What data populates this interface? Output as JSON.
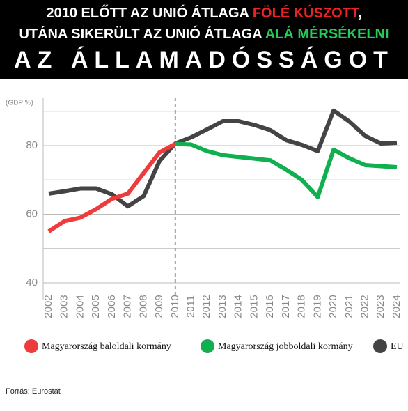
{
  "chart_data": {
    "type": "line",
    "title_lines": [
      [
        {
          "text": "2010 ELŐTT AZ UNIÓ ÁTLAGA ",
          "color": "#ffffff"
        },
        {
          "text": "FÖLÉ KÚSZOTT",
          "color": "#ee2222"
        },
        {
          "text": ",",
          "color": "#ffffff"
        }
      ],
      [
        {
          "text": "UTÁNA SIKERÜLT AZ UNIÓ ÁTLAGA ",
          "color": "#ffffff"
        },
        {
          "text": "ALÁ MÉRSÉKELNI",
          "color": "#22cc55"
        }
      ],
      [
        {
          "text": "AZ ÁLLAMADÓSSÁGOT",
          "color": "#ffffff"
        }
      ]
    ],
    "y_axis_label": "(GDP %)",
    "categories": [
      "2002",
      "2003",
      "2004",
      "2005",
      "2006",
      "2007",
      "2008",
      "2009",
      "2010",
      "2011",
      "2012",
      "2013",
      "2014",
      "2015",
      "2016",
      "2017",
      "2018",
      "2019",
      "2020",
      "2021",
      "2022",
      "2023",
      "2024"
    ],
    "series": [
      {
        "name": "Magyarország baloldali kormány",
        "color": "#ee3b3b",
        "values": [
          55,
          58,
          59,
          61.5,
          64.5,
          66,
          72,
          78,
          80.5,
          null,
          null,
          null,
          null,
          null,
          null,
          null,
          null,
          null,
          null,
          null,
          null,
          null,
          null
        ]
      },
      {
        "name": "Magyarország jobboldali kormány",
        "color": "#10b050",
        "values": [
          null,
          null,
          null,
          null,
          null,
          null,
          null,
          null,
          80.5,
          80.3,
          78.4,
          77.2,
          76.7,
          76.2,
          75.7,
          73,
          70,
          65,
          78.8,
          76.3,
          74.3,
          74,
          73.7
        ]
      },
      {
        "name": "EU",
        "color": "#444444",
        "values": [
          66,
          66.7,
          67.5,
          67.5,
          65.8,
          62.3,
          65.3,
          75.5,
          80.6,
          82.4,
          84.7,
          87.1,
          87.1,
          86,
          84.5,
          81.6,
          80.2,
          78.4,
          90.2,
          87,
          82.8,
          80.6,
          80.8
        ]
      }
    ],
    "vline": "2010",
    "ylim": [
      40,
      94
    ],
    "yticks": [
      40,
      60,
      80
    ],
    "ygrid": [
      40,
      50,
      60,
      70,
      80,
      90
    ],
    "source": "Forrás: Eurostat"
  }
}
